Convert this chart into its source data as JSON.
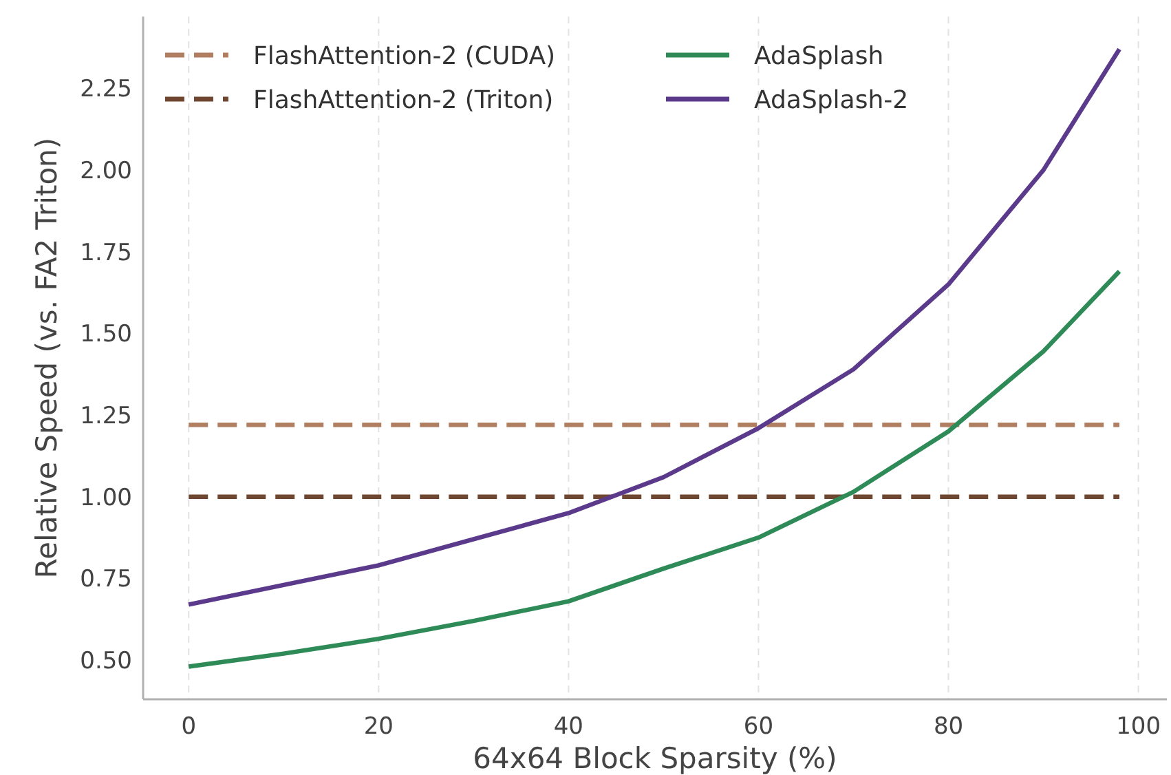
{
  "chart_data": {
    "type": "line",
    "xlabel": "64x64 Block Sparsity (%)",
    "ylabel": "Relative Speed (vs. FA2 Triton)",
    "xlim": [
      -4.8,
      103
    ],
    "xticks": [
      0,
      20,
      40,
      60,
      80,
      100
    ],
    "ylim": [
      0.38,
      2.47
    ],
    "yticks": [
      {
        "value": 0.5,
        "label": "0.50"
      },
      0.75,
      {
        "value": 1,
        "label": "1.00"
      },
      1.25,
      {
        "value": 1.5,
        "label": "1.50"
      },
      1.75,
      {
        "value": 2,
        "label": "2.00"
      },
      2.25
    ],
    "grid": "x",
    "legend": "top left",
    "series": [
      {
        "name": "FlashAttention-2 (CUDA)",
        "color": "#b07f62",
        "line_style": "dashed",
        "x": [
          0,
          98
        ],
        "values": [
          1.22,
          1.22
        ]
      },
      {
        "name": "FlashAttention-2 (Triton)",
        "color": "#6f4630",
        "line_style": "dashed",
        "x": [
          0,
          98
        ],
        "values": [
          1.0,
          1.0
        ]
      },
      {
        "name": "AdaSplash",
        "color": "#2e8b57",
        "line_style": "solid",
        "x": [
          0,
          10,
          20,
          30,
          40,
          50,
          60,
          70,
          80,
          90,
          98
        ],
        "values": [
          0.48,
          0.52,
          0.565,
          0.62,
          0.68,
          0.78,
          0.875,
          1.015,
          1.2,
          1.445,
          1.69
        ]
      },
      {
        "name": "AdaSplash-2",
        "color": "#5b3a8c",
        "line_style": "solid",
        "x": [
          0,
          10,
          20,
          30,
          40,
          50,
          60,
          70,
          80,
          90,
          98
        ],
        "values": [
          0.67,
          0.73,
          0.79,
          0.87,
          0.95,
          1.06,
          1.21,
          1.39,
          1.65,
          2.0,
          2.37
        ]
      }
    ]
  }
}
